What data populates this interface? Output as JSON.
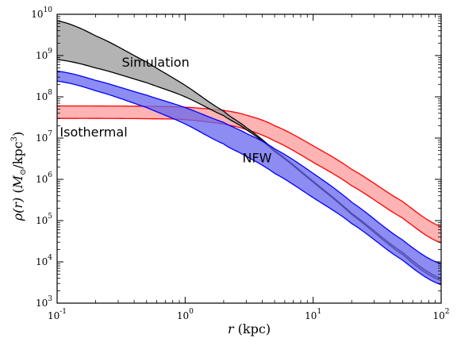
{
  "chart_data": {
    "type": "area",
    "xlabel": {
      "main": "r",
      "unit": " (kpc)"
    },
    "ylabel": {
      "rho": "ρ(r)",
      "open": " (",
      "msun": "M",
      "sun": "⊙",
      "rest": "/kpc",
      "exp": "3",
      "close": ")"
    },
    "x_scale": "log",
    "y_scale": "log",
    "xlim": [
      0.1,
      100
    ],
    "ylim": [
      1000,
      10000000000
    ],
    "x_ticks": [
      {
        "value": 0.1,
        "base": "10",
        "exp": "-1"
      },
      {
        "value": 1,
        "base": "10",
        "exp": "0"
      },
      {
        "value": 10,
        "base": "10",
        "exp": "1"
      },
      {
        "value": 100,
        "base": "10",
        "exp": "2"
      }
    ],
    "y_ticks": [
      {
        "value": 1000,
        "base": "10",
        "exp": "3"
      },
      {
        "value": 10000,
        "base": "10",
        "exp": "4"
      },
      {
        "value": 100000,
        "base": "10",
        "exp": "5"
      },
      {
        "value": 1000000,
        "base": "10",
        "exp": "6"
      },
      {
        "value": 10000000,
        "base": "10",
        "exp": "7"
      },
      {
        "value": 100000000,
        "base": "10",
        "exp": "8"
      },
      {
        "value": 1000000000,
        "base": "10",
        "exp": "9"
      },
      {
        "value": 10000000000,
        "base": "10",
        "exp": "10"
      }
    ],
    "grid": false,
    "annotations": [
      {
        "text": "Simulation",
        "x": 0.32,
        "y": 540000000
      },
      {
        "text": "Isothermal",
        "x": 0.105,
        "y": 11000000
      },
      {
        "text": "NFW",
        "x": 2.8,
        "y": 2600000
      }
    ],
    "series": [
      {
        "name": "Isothermal",
        "stroke": "#ff0000",
        "fill": "#ff9999",
        "x": [
          0.1,
          0.2,
          0.5,
          1,
          2,
          3,
          5,
          10,
          20,
          50,
          100
        ],
        "upper": [
          60000000,
          60000000,
          59000000,
          56000000,
          47000000,
          36000000,
          20000000,
          6500000,
          1750000,
          290000,
          72000
        ],
        "lower": [
          30000000,
          30000000,
          29500000,
          28000000,
          22000000,
          16000000,
          8500000,
          2600000,
          700000,
          115000,
          29000
        ]
      },
      {
        "name": "Simulation",
        "stroke": "#000000",
        "fill": "#999999",
        "x": [
          0.1,
          0.2,
          0.5,
          1,
          2,
          3,
          5,
          10,
          20,
          50,
          100
        ],
        "upper": [
          7000000000,
          3000000000,
          700000000,
          190000000,
          45000000,
          18000000,
          5000000,
          900000,
          150000,
          17000,
          4000
        ],
        "lower": [
          800000000,
          500000000,
          220000000,
          100000000,
          35000000,
          16000000,
          4700000,
          850000,
          140000,
          15000,
          3500
        ]
      },
      {
        "name": "NFW",
        "stroke": "#0000ff",
        "fill": "#6666ee",
        "x": [
          0.1,
          0.2,
          0.5,
          1,
          2,
          3,
          5,
          10,
          20,
          50,
          100
        ],
        "upper": [
          420000000,
          250000000,
          110000000,
          55000000,
          24000000,
          13000000,
          5500000,
          1400000,
          280000,
          34000,
          9000
        ],
        "lower": [
          240000000,
          140000000,
          55000000,
          22000000,
          7200000,
          3600000,
          1400000,
          360000,
          85000,
          11000,
          2800
        ]
      }
    ]
  }
}
